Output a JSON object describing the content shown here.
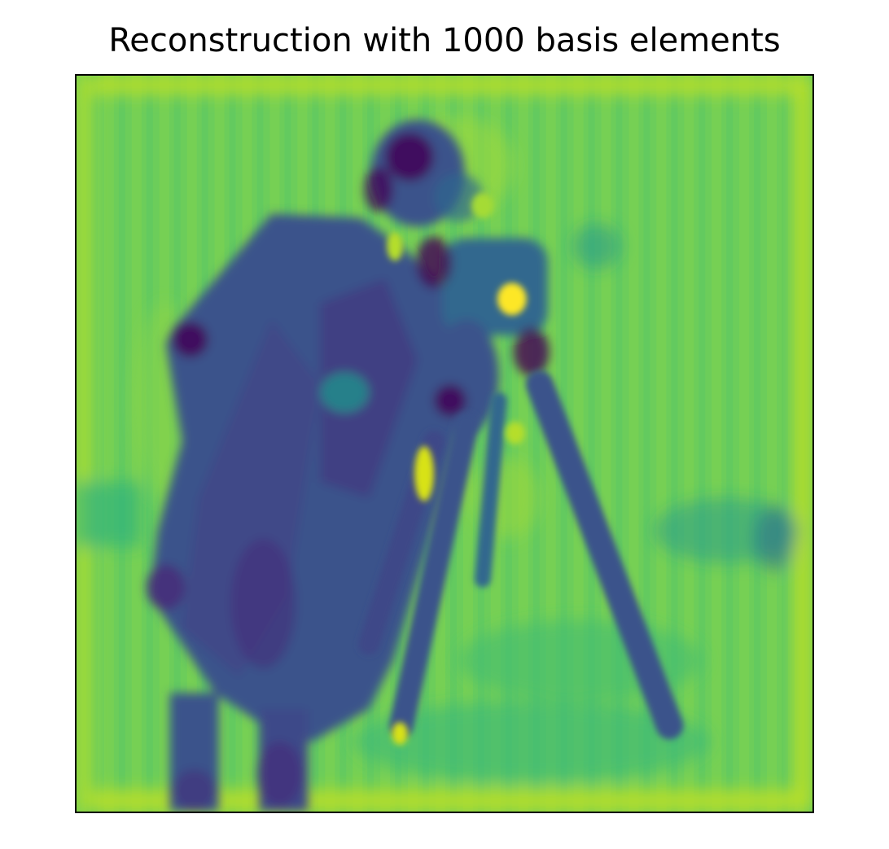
{
  "figure": {
    "title": "Reconstruction with 1000 basis elements"
  },
  "image": {
    "colormap": "viridis",
    "colors": {
      "low": "#440154",
      "low_mid": "#3b528b",
      "mid": "#21918c",
      "high_mid": "#5ec962",
      "high": "#fde725"
    }
  }
}
